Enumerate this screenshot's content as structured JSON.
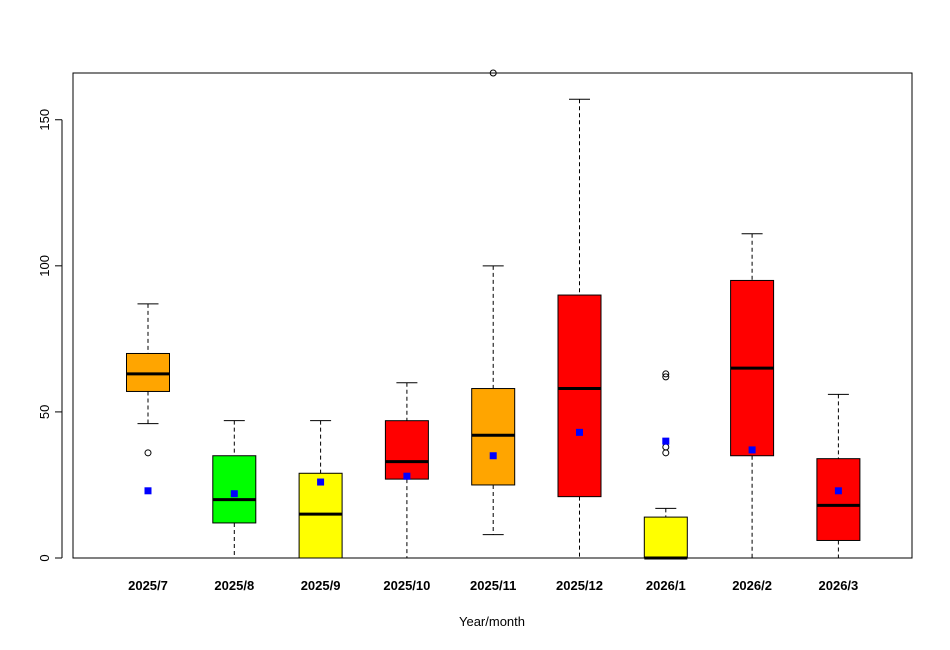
{
  "chart_data": {
    "type": "box",
    "title": "",
    "xlabel": "Year/month",
    "ylabel": "",
    "ylim": [
      0,
      166
    ],
    "yticks": [
      0,
      50,
      100,
      150
    ],
    "grid": false,
    "legend": "none",
    "mean_marker_color": "#0000ff",
    "categories": [
      "2025/7",
      "2025/8",
      "2025/9",
      "2025/10",
      "2025/11",
      "2025/12",
      "2026/1",
      "2026/2",
      "2026/3"
    ],
    "boxes": [
      {
        "category": "2025/7",
        "color": "#ffa500",
        "whisker_low": 46,
        "q1": 57,
        "median": 63,
        "q3": 70,
        "whisker_high": 87,
        "mean": 23,
        "outliers": [
          36
        ]
      },
      {
        "category": "2025/8",
        "color": "#00ff00",
        "whisker_low": 0,
        "q1": 12,
        "median": 20,
        "q3": 35,
        "whisker_high": 47,
        "mean": 22,
        "outliers": []
      },
      {
        "category": "2025/9",
        "color": "#ffff00",
        "whisker_low": 0,
        "q1": 0,
        "median": 15,
        "q3": 29,
        "whisker_high": 47,
        "mean": 26,
        "outliers": []
      },
      {
        "category": "2025/10",
        "color": "#ff0000",
        "whisker_low": 0,
        "q1": 27,
        "median": 33,
        "q3": 47,
        "whisker_high": 60,
        "mean": 28,
        "outliers": []
      },
      {
        "category": "2025/11",
        "color": "#ffa500",
        "whisker_low": 8,
        "q1": 25,
        "median": 42,
        "q3": 58,
        "whisker_high": 100,
        "mean": 35,
        "outliers": [
          166
        ]
      },
      {
        "category": "2025/12",
        "color": "#ff0000",
        "whisker_low": 0,
        "q1": 21,
        "median": 58,
        "q3": 90,
        "whisker_high": 157,
        "mean": 43,
        "outliers": []
      },
      {
        "category": "2026/1",
        "color": "#ffff00",
        "whisker_low": 0,
        "q1": 0,
        "median": 0,
        "q3": 14,
        "whisker_high": 17,
        "mean": 40,
        "outliers": [
          36,
          38,
          62,
          63
        ]
      },
      {
        "category": "2026/2",
        "color": "#ff0000",
        "whisker_low": 0,
        "q1": 35,
        "median": 65,
        "q3": 95,
        "whisker_high": 111,
        "mean": 37,
        "outliers": []
      },
      {
        "category": "2026/3",
        "color": "#ff0000",
        "whisker_low": 0,
        "q1": 6,
        "median": 18,
        "q3": 34,
        "whisker_high": 56,
        "mean": 23,
        "outliers": []
      }
    ]
  }
}
